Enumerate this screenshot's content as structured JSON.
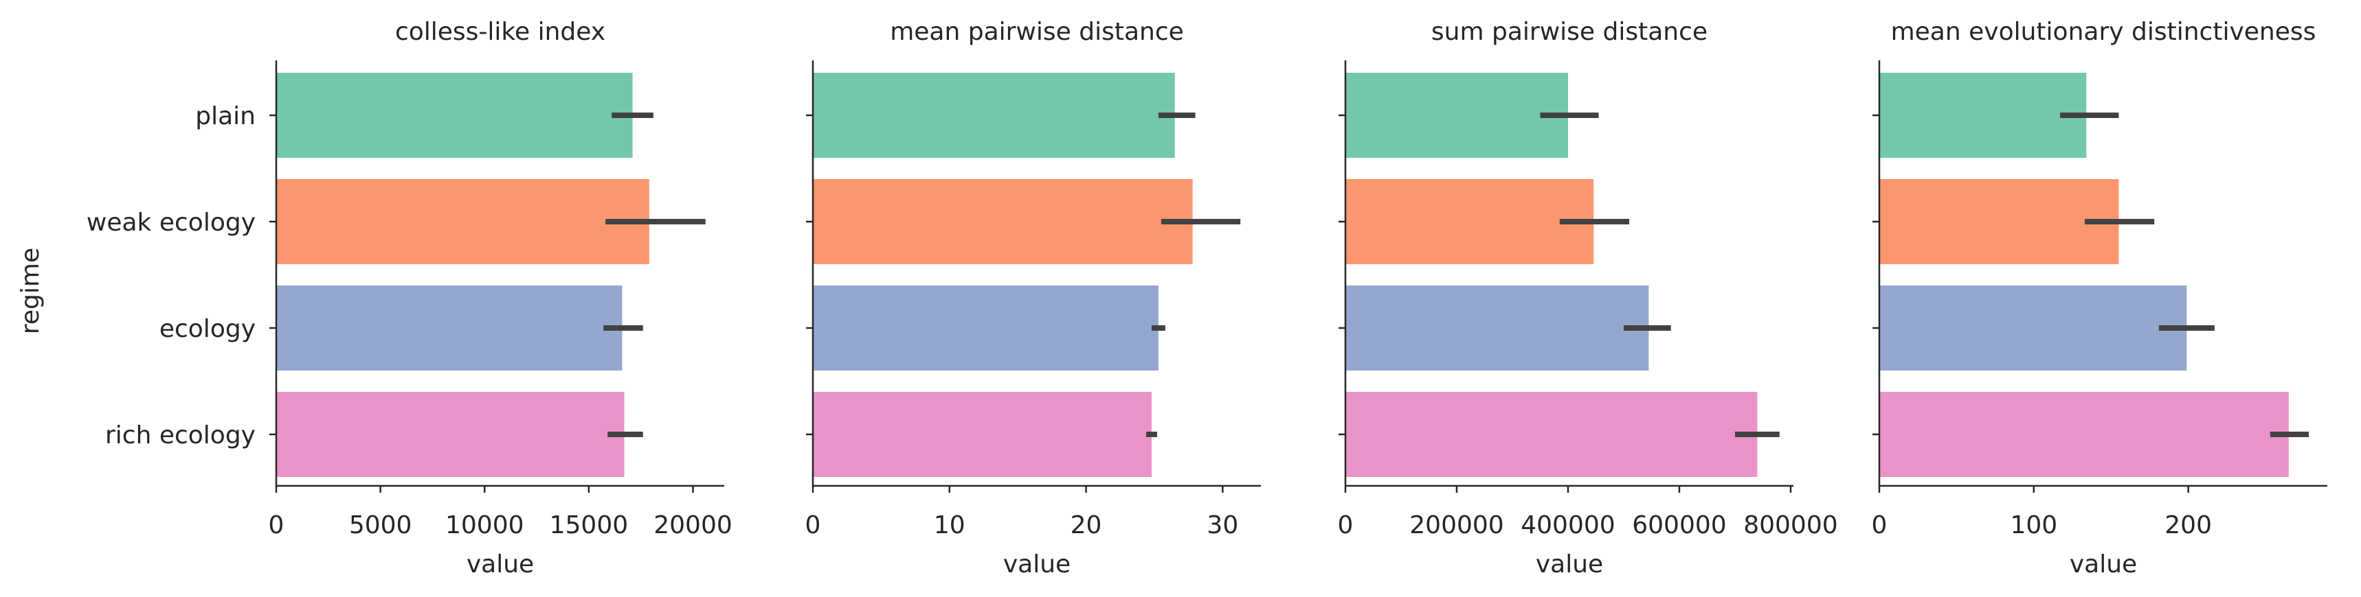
{
  "figure": {
    "y_axis_label": "regime",
    "colors": [
      "#66c2a5",
      "#fc8d62",
      "#8da0cb",
      "#e78ac3"
    ],
    "bar_alpha": 0.92,
    "errorbar_color": "#424242"
  },
  "chart_data": [
    {
      "type": "bar",
      "orientation": "horizontal",
      "title": "colless-like index",
      "xlabel": "value",
      "ylabel": "regime",
      "categories": [
        "plain",
        "weak ecology",
        "ecology",
        "rich ecology"
      ],
      "values": [
        17100,
        17900,
        16600,
        16700
      ],
      "ci_low": [
        16100,
        15800,
        15700,
        15900
      ],
      "ci_high": [
        18100,
        20600,
        17600,
        17600
      ],
      "xlim": [
        0,
        21500
      ],
      "xticks": [
        0,
        5000,
        10000,
        15000,
        20000
      ],
      "xtick_labels": [
        "0",
        "5000",
        "10000",
        "15000",
        "20000"
      ],
      "grid": false
    },
    {
      "type": "bar",
      "orientation": "horizontal",
      "title": "mean pairwise distance",
      "xlabel": "value",
      "categories": [
        "plain",
        "weak ecology",
        "ecology",
        "rich ecology"
      ],
      "values": [
        26.5,
        27.8,
        25.3,
        24.8
      ],
      "ci_low": [
        25.3,
        25.5,
        24.8,
        24.4
      ],
      "ci_high": [
        28.0,
        31.3,
        25.8,
        25.2
      ],
      "xlim": [
        0,
        32.8
      ],
      "xticks": [
        0,
        10,
        20,
        30
      ],
      "xtick_labels": [
        "0",
        "10",
        "20",
        "30"
      ],
      "grid": false
    },
    {
      "type": "bar",
      "orientation": "horizontal",
      "title": "sum pairwise distance",
      "xlabel": "value",
      "categories": [
        "plain",
        "weak ecology",
        "ecology",
        "rich ecology"
      ],
      "values": [
        400000,
        446000,
        545000,
        740000
      ],
      "ci_low": [
        350000,
        385000,
        500000,
        700000
      ],
      "ci_high": [
        455000,
        510000,
        585000,
        780000
      ],
      "xlim": [
        0,
        805000
      ],
      "xticks": [
        0,
        200000,
        400000,
        600000,
        800000
      ],
      "xtick_labels": [
        "0",
        "200000",
        "400000",
        "600000",
        "800000"
      ],
      "grid": false
    },
    {
      "type": "bar",
      "orientation": "horizontal",
      "title": "mean evolutionary distinctiveness",
      "xlabel": "value",
      "categories": [
        "plain",
        "weak ecology",
        "ecology",
        "rich ecology"
      ],
      "values": [
        134,
        155,
        199,
        265
      ],
      "ci_low": [
        117,
        133,
        181,
        253
      ],
      "ci_high": [
        155,
        178,
        217,
        278
      ],
      "xlim": [
        0,
        290
      ],
      "xticks": [
        0,
        100,
        200
      ],
      "xtick_labels": [
        "0",
        "100",
        "200"
      ],
      "grid": false
    }
  ]
}
